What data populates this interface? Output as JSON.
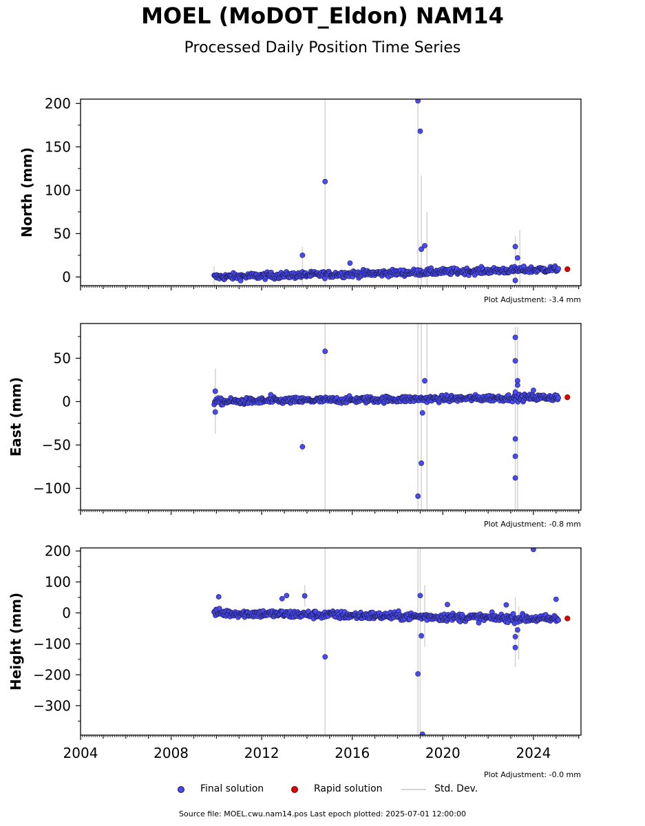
{
  "title": "MOEL (MoDOT_Eldon) NAM14",
  "subtitle": "Processed Daily Position Time Series",
  "colors": {
    "final": "#4a4af0",
    "final_edge": "#1a1a4a",
    "rapid": "#e00000",
    "stddev": "#d3d3d3"
  },
  "legend": {
    "final": "Final solution",
    "rapid": "Rapid solution",
    "stddev": "Std. Dev."
  },
  "footer": "Source file: MOEL.cwu.nam14.pos  Last epoch plotted: 2025-07-01 12:00:00",
  "chart_data": [
    {
      "type": "scatter",
      "ylabel": "North (mm)",
      "adjustment": "Plot Adjustment: -3.4 mm",
      "xlim": [
        2004,
        2026.1
      ],
      "ylim": [
        -10,
        205
      ],
      "yticks": [
        0,
        50,
        100,
        150,
        200
      ],
      "baseline": {
        "start": 2009.9,
        "end": 2025.1,
        "start_value": 0,
        "end_value": 9
      },
      "outliers": [
        {
          "x": 2013.8,
          "y": 25
        },
        {
          "x": 2014.8,
          "y": 110
        },
        {
          "x": 2018.9,
          "y": 203
        },
        {
          "x": 2019.0,
          "y": 168
        },
        {
          "x": 2019.05,
          "y": 32
        },
        {
          "x": 2019.2,
          "y": 36
        },
        {
          "x": 2023.2,
          "y": 35
        },
        {
          "x": 2023.3,
          "y": 22
        },
        {
          "x": 2023.2,
          "y": -4
        },
        {
          "x": 2015.9,
          "y": 16
        }
      ],
      "errorbars": [
        {
          "x": 2014.8,
          "low": -10,
          "high": 205
        },
        {
          "x": 2018.9,
          "low": -10,
          "high": 205
        },
        {
          "x": 2019.05,
          "low": -10,
          "high": 117
        },
        {
          "x": 2019.3,
          "low": -10,
          "high": 75
        },
        {
          "x": 2023.2,
          "low": -10,
          "high": 47
        },
        {
          "x": 2023.4,
          "low": -10,
          "high": 54
        },
        {
          "x": 2013.8,
          "low": -10,
          "high": 35
        },
        {
          "x": 2009.9,
          "low": -10,
          "high": 12
        }
      ],
      "rapid": [
        {
          "x": 2025.5,
          "y": 9
        }
      ]
    },
    {
      "type": "scatter",
      "ylabel": "East (mm)",
      "adjustment": "Plot Adjustment: -0.8 mm",
      "xlim": [
        2004,
        2026.1
      ],
      "ylim": [
        -125,
        90
      ],
      "yticks": [
        -100,
        -50,
        0,
        50
      ],
      "baseline": {
        "start": 2009.9,
        "end": 2025.1,
        "start_value": 0,
        "end_value": 5
      },
      "outliers": [
        {
          "x": 2009.95,
          "y": 12
        },
        {
          "x": 2009.95,
          "y": -12
        },
        {
          "x": 2012.4,
          "y": 8
        },
        {
          "x": 2013.8,
          "y": -52
        },
        {
          "x": 2014.8,
          "y": 58
        },
        {
          "x": 2018.9,
          "y": -109
        },
        {
          "x": 2019.05,
          "y": -71
        },
        {
          "x": 2019.1,
          "y": -13
        },
        {
          "x": 2019.2,
          "y": 24
        },
        {
          "x": 2023.2,
          "y": 74
        },
        {
          "x": 2023.2,
          "y": 47
        },
        {
          "x": 2023.3,
          "y": 24
        },
        {
          "x": 2023.3,
          "y": 19
        },
        {
          "x": 2023.2,
          "y": -43
        },
        {
          "x": 2023.2,
          "y": -63
        },
        {
          "x": 2023.2,
          "y": -88
        },
        {
          "x": 2024.0,
          "y": 13
        },
        {
          "x": 2023.2,
          "y": 11
        }
      ],
      "errorbars": [
        {
          "x": 2009.95,
          "low": -37,
          "high": 38
        },
        {
          "x": 2014.8,
          "low": -125,
          "high": 90
        },
        {
          "x": 2018.9,
          "low": -125,
          "high": 90
        },
        {
          "x": 2019.05,
          "low": -125,
          "high": 90
        },
        {
          "x": 2019.3,
          "low": -125,
          "high": 90
        },
        {
          "x": 2023.2,
          "low": -125,
          "high": 86
        },
        {
          "x": 2023.3,
          "low": -125,
          "high": 86
        },
        {
          "x": 2013.8,
          "low": -58,
          "high": -44
        }
      ],
      "rapid": [
        {
          "x": 2025.5,
          "y": 5
        }
      ]
    },
    {
      "type": "scatter",
      "ylabel": "Height (mm)",
      "adjustment": "Plot Adjustment: -0.0 mm",
      "xlim": [
        2004,
        2026.1
      ],
      "ylim": [
        -395,
        210
      ],
      "yticks": [
        -300,
        -200,
        -100,
        0,
        100,
        200
      ],
      "xticks": [
        2004,
        2008,
        2012,
        2016,
        2020,
        2024
      ],
      "baseline": {
        "start": 2009.9,
        "end": 2025.1,
        "start_value": 0,
        "end_value": -20
      },
      "outliers": [
        {
          "x": 2010.1,
          "y": 52
        },
        {
          "x": 2013.1,
          "y": 56
        },
        {
          "x": 2012.9,
          "y": 46
        },
        {
          "x": 2013.9,
          "y": 55
        },
        {
          "x": 2014.8,
          "y": -142
        },
        {
          "x": 2018.9,
          "y": -197
        },
        {
          "x": 2019.0,
          "y": 56
        },
        {
          "x": 2019.05,
          "y": -74
        },
        {
          "x": 2019.1,
          "y": -392
        },
        {
          "x": 2023.2,
          "y": -112
        },
        {
          "x": 2023.2,
          "y": -77
        },
        {
          "x": 2023.3,
          "y": -55
        },
        {
          "x": 2024.0,
          "y": 205
        },
        {
          "x": 2025.0,
          "y": 44
        },
        {
          "x": 2020.2,
          "y": 27
        },
        {
          "x": 2022.8,
          "y": 26
        }
      ],
      "errorbars": [
        {
          "x": 2014.8,
          "low": -395,
          "high": 210
        },
        {
          "x": 2018.9,
          "low": -395,
          "high": 210
        },
        {
          "x": 2019.0,
          "low": -395,
          "high": 210
        },
        {
          "x": 2019.2,
          "low": -110,
          "high": 90
        },
        {
          "x": 2023.2,
          "low": -175,
          "high": 50
        },
        {
          "x": 2023.35,
          "low": -150,
          "high": 20
        },
        {
          "x": 2013.9,
          "low": 20,
          "high": 90
        }
      ],
      "rapid": [
        {
          "x": 2025.5,
          "y": -18
        }
      ]
    }
  ]
}
